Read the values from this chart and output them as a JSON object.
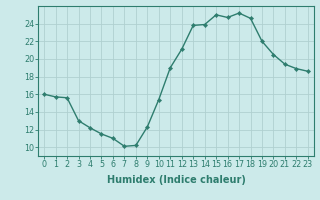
{
  "x": [
    0,
    1,
    2,
    3,
    4,
    5,
    6,
    7,
    8,
    9,
    10,
    11,
    12,
    13,
    14,
    15,
    16,
    17,
    18,
    19,
    20,
    21,
    22,
    23
  ],
  "y": [
    16.0,
    15.7,
    15.6,
    13.0,
    12.2,
    11.5,
    11.0,
    10.1,
    10.2,
    12.3,
    15.4,
    19.0,
    21.1,
    23.8,
    23.9,
    25.0,
    24.7,
    25.2,
    24.6,
    22.0,
    20.5,
    19.4,
    18.9,
    18.6
  ],
  "line_color": "#2e7d6e",
  "marker": "D",
  "marker_size": 2.2,
  "bg_color": "#cceaea",
  "grid_color": "#b0d0d0",
  "xlabel": "Humidex (Indice chaleur)",
  "ylim": [
    9,
    26
  ],
  "xlim": [
    -0.5,
    23.5
  ],
  "yticks": [
    10,
    12,
    14,
    16,
    18,
    20,
    22,
    24
  ],
  "xticks": [
    0,
    1,
    2,
    3,
    4,
    5,
    6,
    7,
    8,
    9,
    10,
    11,
    12,
    13,
    14,
    15,
    16,
    17,
    18,
    19,
    20,
    21,
    22,
    23
  ],
  "tick_label_fontsize": 5.8,
  "xlabel_fontsize": 7.0,
  "line_width": 1.0
}
